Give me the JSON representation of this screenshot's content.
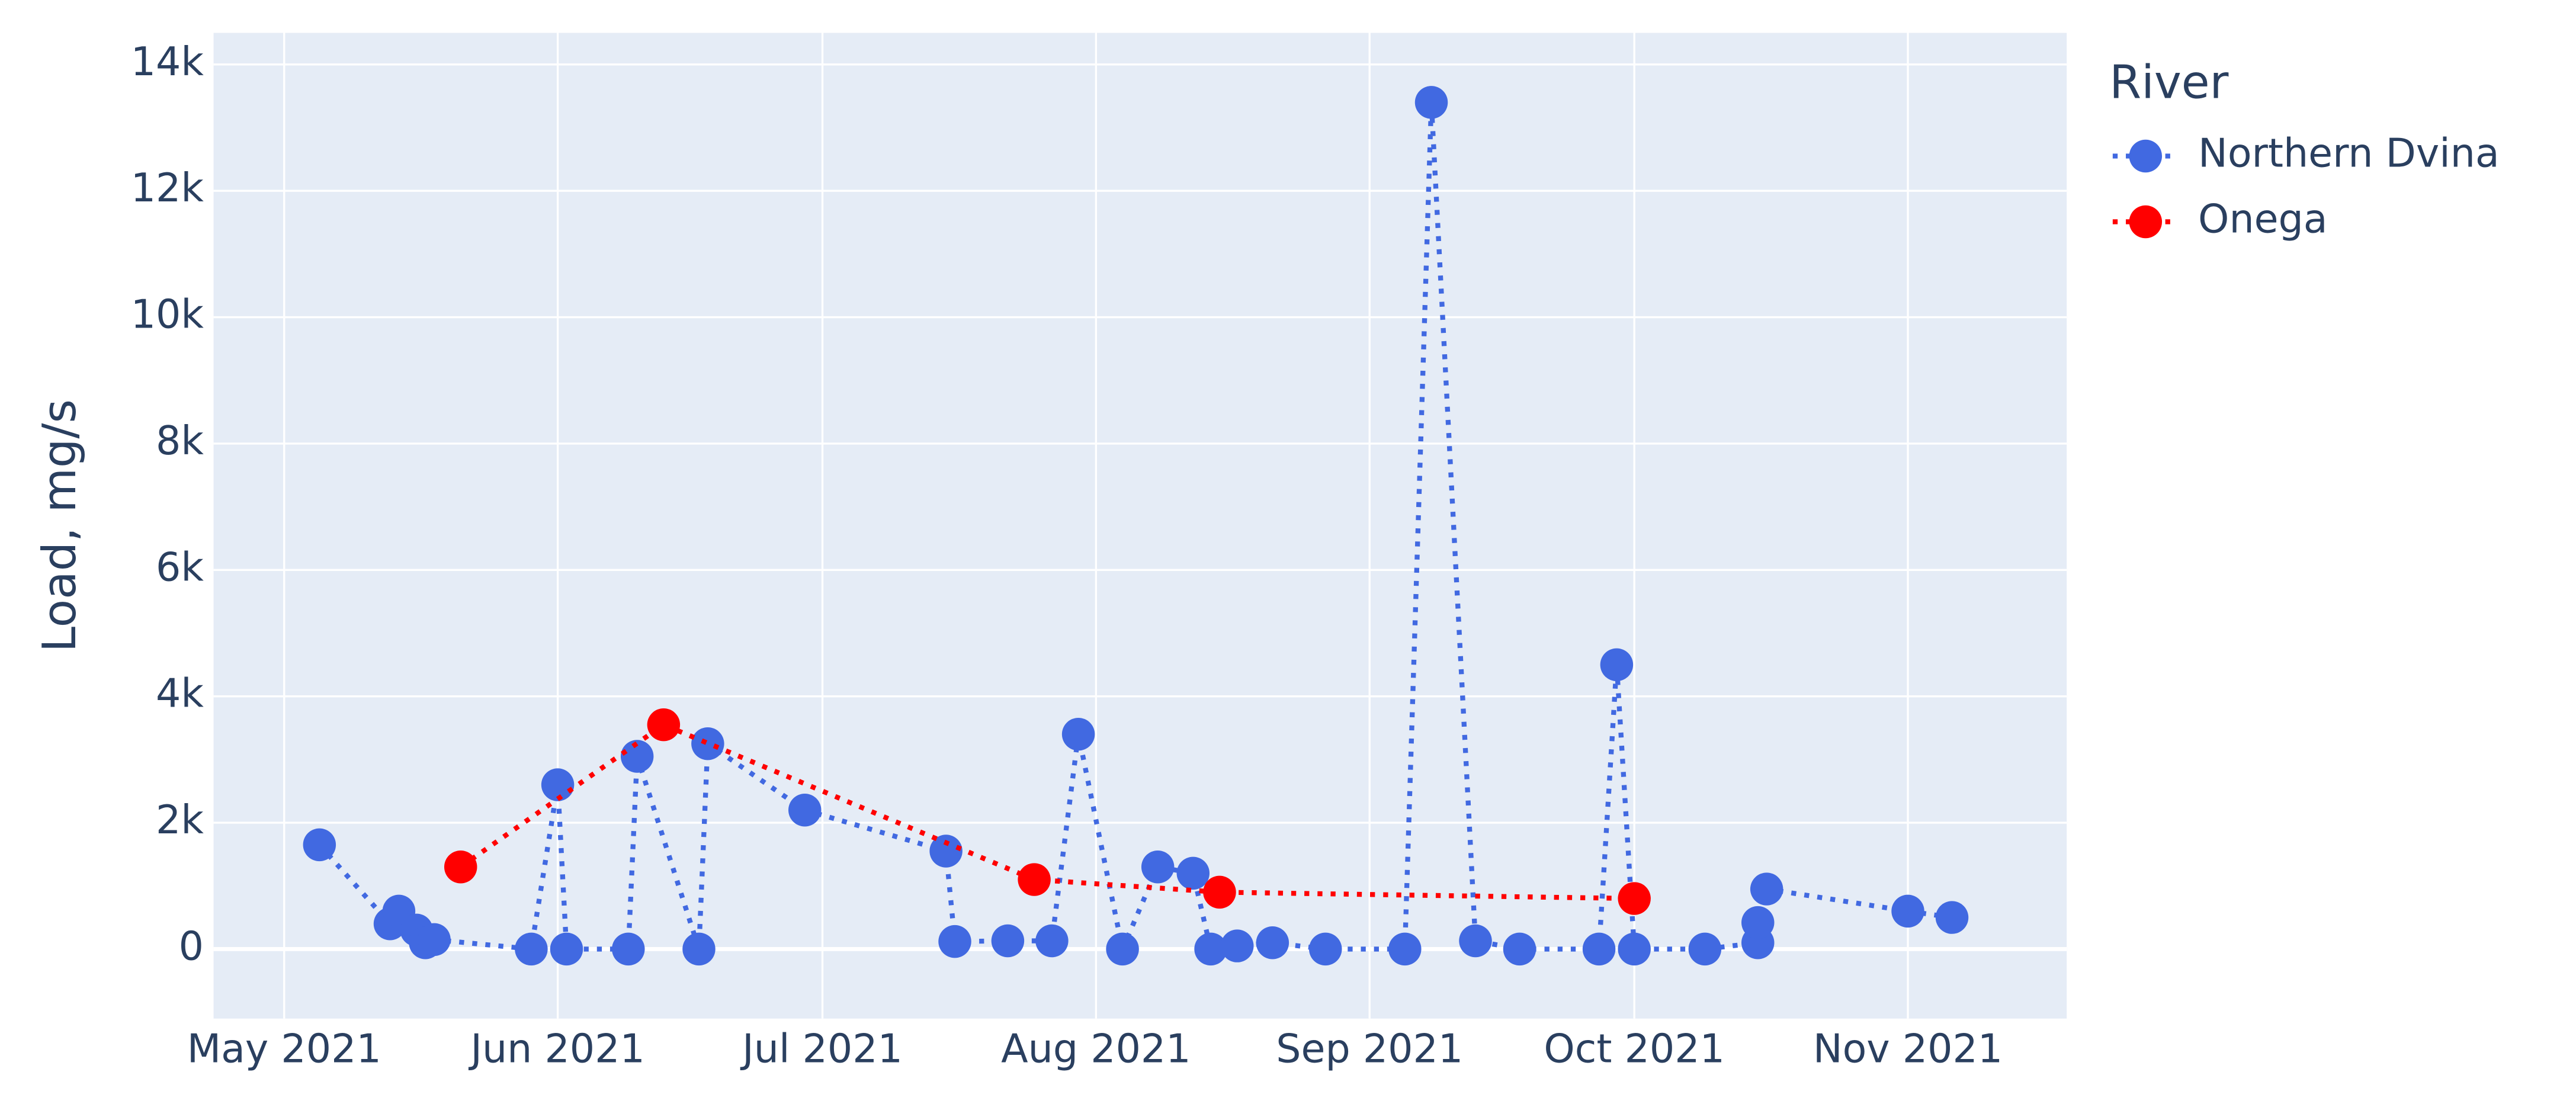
{
  "chart_data": {
    "type": "line",
    "y_label": "Load, mg/s",
    "legend_title": "River",
    "legend_position": "right",
    "grid": true,
    "xlim": [
      "2021-04-23",
      "2021-11-19"
    ],
    "xticks": [
      {
        "value": "2021-05-01",
        "label": "May 2021"
      },
      {
        "value": "2021-06-01",
        "label": "Jun 2021"
      },
      {
        "value": "2021-07-01",
        "label": "Jul 2021"
      },
      {
        "value": "2021-08-01",
        "label": "Aug 2021"
      },
      {
        "value": "2021-09-01",
        "label": "Sep 2021"
      },
      {
        "value": "2021-10-01",
        "label": "Oct 2021"
      },
      {
        "value": "2021-11-01",
        "label": "Nov 2021"
      }
    ],
    "ylim": [
      -1100,
      14500
    ],
    "yticks": [
      0,
      {
        "value": 2000,
        "label": "2k"
      },
      {
        "value": 4000,
        "label": "4k"
      },
      {
        "value": 6000,
        "label": "6k"
      },
      {
        "value": 8000,
        "label": "8k"
      },
      {
        "value": 10000,
        "label": "10k"
      },
      {
        "value": 12000,
        "label": "12k"
      },
      {
        "value": 14000,
        "label": "14k"
      }
    ],
    "series": [
      {
        "name": "Northern Dvina",
        "color": "#4169e1",
        "x": [
          "2021-05-05",
          "2021-05-13",
          "2021-05-14",
          "2021-05-16",
          "2021-05-17",
          "2021-05-18",
          "2021-05-29",
          "2021-06-01",
          "2021-06-02",
          "2021-06-09",
          "2021-06-10",
          "2021-06-17",
          "2021-06-18",
          "2021-06-29",
          "2021-07-15",
          "2021-07-16",
          "2021-07-22",
          "2021-07-27",
          "2021-07-30",
          "2021-08-04",
          "2021-08-08",
          "2021-08-12",
          "2021-08-14",
          "2021-08-17",
          "2021-08-21",
          "2021-08-27",
          "2021-09-05",
          "2021-09-08",
          "2021-09-13",
          "2021-09-18",
          "2021-09-27",
          "2021-09-29",
          "2021-10-01",
          "2021-10-09",
          "2021-10-15",
          "2021-10-15",
          "2021-10-16",
          "2021-11-01",
          "2021-11-06"
        ],
        "values": [
          1650,
          400,
          600,
          300,
          100,
          150,
          0,
          2600,
          0,
          0,
          3050,
          0,
          3250,
          2200,
          1550,
          120,
          130,
          130,
          3400,
          0,
          1300,
          1200,
          0,
          50,
          100,
          0,
          0,
          13400,
          130,
          0,
          0,
          4500,
          0,
          0,
          100,
          420,
          950,
          600,
          500
        ]
      },
      {
        "name": "Onega",
        "color": "#ff0000",
        "x": [
          "2021-05-21",
          "2021-06-13",
          "2021-07-25",
          "2021-08-15",
          "2021-10-01"
        ],
        "values": [
          1300,
          3550,
          1100,
          900,
          800
        ]
      }
    ]
  }
}
